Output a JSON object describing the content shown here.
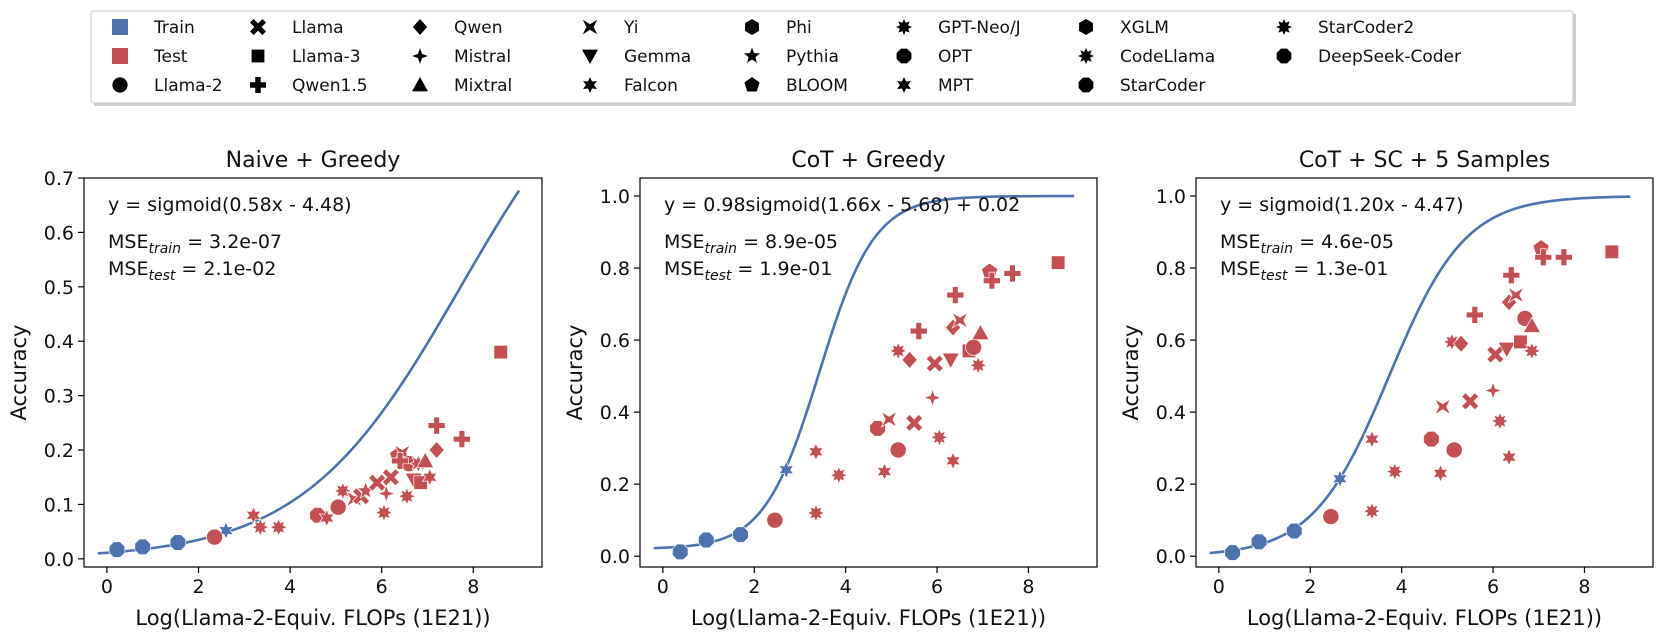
{
  "legend": {
    "position": "top",
    "entries": [
      {
        "label": "Train",
        "marker": "legend-square",
        "color": "#4c72b0"
      },
      {
        "label": "Test",
        "marker": "legend-square",
        "color": "#c44e52"
      },
      {
        "label": "Llama-2",
        "marker": "circle"
      },
      {
        "label": "Llama",
        "marker": "x"
      },
      {
        "label": "Llama-3",
        "marker": "square"
      },
      {
        "label": "Qwen1.5",
        "marker": "plus"
      },
      {
        "label": "Qwen",
        "marker": "diamond"
      },
      {
        "label": "Mistral",
        "marker": "star4"
      },
      {
        "label": "Mixtral",
        "marker": "triangle-up"
      },
      {
        "label": "Yi",
        "marker": "bowtie"
      },
      {
        "label": "Gemma",
        "marker": "triangle-down"
      },
      {
        "label": "Falcon",
        "marker": "star6"
      },
      {
        "label": "Phi",
        "marker": "hexagon"
      },
      {
        "label": "Pythia",
        "marker": "star5"
      },
      {
        "label": "BLOOM",
        "marker": "pentagon"
      },
      {
        "label": "GPT-Neo/J",
        "marker": "star8"
      },
      {
        "label": "OPT",
        "marker": "octagon"
      },
      {
        "label": "MPT",
        "marker": "star6"
      },
      {
        "label": "XGLM",
        "marker": "hexagon"
      },
      {
        "label": "CodeLlama",
        "marker": "star8"
      },
      {
        "label": "StarCoder",
        "marker": "octagon"
      },
      {
        "label": "StarCoder2",
        "marker": "star8"
      },
      {
        "label": "DeepSeek-Coder",
        "marker": "octagon"
      }
    ]
  },
  "chart_data": [
    {
      "type": "scatter",
      "title": "Naive + Greedy",
      "xlabel": "Log(Llama-2-Equiv. FLOPs (1E21))",
      "ylabel": "Accuracy",
      "xlim": [
        -0.5,
        9.5
      ],
      "ylim": [
        -0.015,
        0.7
      ],
      "xticks": [
        0,
        2,
        4,
        6,
        8
      ],
      "yticks": [
        0.0,
        0.1,
        0.2,
        0.3,
        0.4,
        0.5,
        0.6,
        0.7
      ],
      "ytick_labels": [
        "0.0",
        "0.1",
        "0.2",
        "0.3",
        "0.4",
        "0.5",
        "0.6",
        "0.7"
      ],
      "grid": false,
      "fit": {
        "formula": "y = sigmoid(0.58x - 4.48)",
        "a": 1.0,
        "k": 0.58,
        "x0": 4.48,
        "c": 0.0,
        "x_range": [
          -0.2,
          9.0
        ],
        "color": "#4c72b0"
      },
      "mse_train": {
        "prefix": "MSE",
        "sub": "train",
        "value": " = 3.2e-07"
      },
      "mse_test": {
        "prefix": "MSE",
        "sub": "test",
        "value": " = 2.1e-02"
      },
      "series": [
        {
          "name": "Train",
          "color": "#4c72b0",
          "points": [
            {
              "x": 0.22,
              "y": 0.017,
              "marker": "octagon"
            },
            {
              "x": 0.78,
              "y": 0.022,
              "marker": "octagon"
            },
            {
              "x": 1.55,
              "y": 0.03,
              "marker": "octagon"
            },
            {
              "x": 2.6,
              "y": 0.052,
              "marker": "star6"
            }
          ]
        },
        {
          "name": "Test",
          "color": "#c44e52",
          "points": [
            {
              "x": 2.35,
              "y": 0.04,
              "marker": "circle"
            },
            {
              "x": 3.2,
              "y": 0.08,
              "marker": "star6"
            },
            {
              "x": 3.35,
              "y": 0.058,
              "marker": "star8"
            },
            {
              "x": 3.75,
              "y": 0.058,
              "marker": "star8"
            },
            {
              "x": 4.6,
              "y": 0.08,
              "marker": "octagon"
            },
            {
              "x": 4.8,
              "y": 0.075,
              "marker": "star6"
            },
            {
              "x": 5.05,
              "y": 0.095,
              "marker": "circle"
            },
            {
              "x": 5.15,
              "y": 0.125,
              "marker": "star8"
            },
            {
              "x": 5.4,
              "y": 0.11,
              "marker": "bowtie"
            },
            {
              "x": 5.55,
              "y": 0.115,
              "marker": "x"
            },
            {
              "x": 5.65,
              "y": 0.125,
              "marker": "star5"
            },
            {
              "x": 5.9,
              "y": 0.14,
              "marker": "x"
            },
            {
              "x": 6.05,
              "y": 0.085,
              "marker": "star8"
            },
            {
              "x": 6.1,
              "y": 0.12,
              "marker": "star4"
            },
            {
              "x": 6.2,
              "y": 0.15,
              "marker": "x"
            },
            {
              "x": 6.35,
              "y": 0.19,
              "marker": "pentagon"
            },
            {
              "x": 6.45,
              "y": 0.195,
              "marker": "bowtie"
            },
            {
              "x": 6.55,
              "y": 0.115,
              "marker": "star8"
            },
            {
              "x": 6.6,
              "y": 0.175,
              "marker": "circle"
            },
            {
              "x": 6.7,
              "y": 0.145,
              "marker": "triangle-down"
            },
            {
              "x": 6.8,
              "y": 0.175,
              "marker": "star8"
            },
            {
              "x": 6.85,
              "y": 0.14,
              "marker": "square"
            },
            {
              "x": 6.95,
              "y": 0.18,
              "marker": "triangle-up"
            },
            {
              "x": 7.05,
              "y": 0.15,
              "marker": "star6"
            },
            {
              "x": 7.2,
              "y": 0.2,
              "marker": "diamond"
            },
            {
              "x": 6.4,
              "y": 0.18,
              "marker": "plus"
            },
            {
              "x": 7.2,
              "y": 0.245,
              "marker": "plus"
            },
            {
              "x": 7.75,
              "y": 0.22,
              "marker": "plus"
            },
            {
              "x": 8.6,
              "y": 0.38,
              "marker": "square"
            }
          ]
        }
      ]
    },
    {
      "type": "scatter",
      "title": "CoT + Greedy",
      "xlabel": "Log(Llama-2-Equiv. FLOPs (1E21))",
      "ylabel": "Accuracy",
      "xlim": [
        -0.5,
        9.5
      ],
      "ylim": [
        -0.03,
        1.05
      ],
      "xticks": [
        0,
        2,
        4,
        6,
        8
      ],
      "yticks": [
        0.0,
        0.2,
        0.4,
        0.6,
        0.8,
        1.0
      ],
      "ytick_labels": [
        "0.0",
        "0.2",
        "0.4",
        "0.6",
        "0.8",
        "1.0"
      ],
      "grid": false,
      "fit": {
        "formula": "y = 0.98sigmoid(1.66x - 5.68) + 0.02",
        "a": 0.98,
        "k": 1.66,
        "x0": 5.68,
        "c": 0.02,
        "x_range": [
          -0.2,
          9.0
        ],
        "color": "#4c72b0"
      },
      "mse_train": {
        "prefix": "MSE",
        "sub": "train",
        "value": " = 8.9e-05"
      },
      "mse_test": {
        "prefix": "MSE",
        "sub": "test",
        "value": " = 1.9e-01"
      },
      "series": [
        {
          "name": "Train",
          "color": "#4c72b0",
          "points": [
            {
              "x": 0.38,
              "y": 0.012,
              "marker": "octagon"
            },
            {
              "x": 0.95,
              "y": 0.045,
              "marker": "octagon"
            },
            {
              "x": 1.7,
              "y": 0.06,
              "marker": "octagon"
            },
            {
              "x": 2.7,
              "y": 0.24,
              "marker": "star6"
            }
          ]
        },
        {
          "name": "Test",
          "color": "#c44e52",
          "points": [
            {
              "x": 2.45,
              "y": 0.1,
              "marker": "circle"
            },
            {
              "x": 3.35,
              "y": 0.12,
              "marker": "star8"
            },
            {
              "x": 3.35,
              "y": 0.29,
              "marker": "star6"
            },
            {
              "x": 3.85,
              "y": 0.225,
              "marker": "star8"
            },
            {
              "x": 4.7,
              "y": 0.355,
              "marker": "octagon"
            },
            {
              "x": 4.85,
              "y": 0.235,
              "marker": "star6"
            },
            {
              "x": 4.95,
              "y": 0.38,
              "marker": "bowtie"
            },
            {
              "x": 5.15,
              "y": 0.57,
              "marker": "star8"
            },
            {
              "x": 5.15,
              "y": 0.295,
              "marker": "circle"
            },
            {
              "x": 5.4,
              "y": 0.545,
              "marker": "diamond"
            },
            {
              "x": 5.5,
              "y": 0.37,
              "marker": "x"
            },
            {
              "x": 5.6,
              "y": 0.625,
              "marker": "plus"
            },
            {
              "x": 5.9,
              "y": 0.44,
              "marker": "star4"
            },
            {
              "x": 5.95,
              "y": 0.535,
              "marker": "x"
            },
            {
              "x": 6.05,
              "y": 0.33,
              "marker": "star8"
            },
            {
              "x": 6.3,
              "y": 0.545,
              "marker": "triangle-down"
            },
            {
              "x": 6.35,
              "y": 0.265,
              "marker": "star6"
            },
            {
              "x": 6.35,
              "y": 0.635,
              "marker": "diamond"
            },
            {
              "x": 6.4,
              "y": 0.725,
              "marker": "plus"
            },
            {
              "x": 6.5,
              "y": 0.655,
              "marker": "bowtie"
            },
            {
              "x": 6.7,
              "y": 0.57,
              "marker": "square"
            },
            {
              "x": 6.8,
              "y": 0.58,
              "marker": "circle"
            },
            {
              "x": 6.9,
              "y": 0.53,
              "marker": "star8"
            },
            {
              "x": 6.95,
              "y": 0.62,
              "marker": "triangle-up"
            },
            {
              "x": 7.15,
              "y": 0.79,
              "marker": "pentagon"
            },
            {
              "x": 7.2,
              "y": 0.765,
              "marker": "plus"
            },
            {
              "x": 7.65,
              "y": 0.785,
              "marker": "plus"
            },
            {
              "x": 8.65,
              "y": 0.815,
              "marker": "square"
            }
          ]
        }
      ]
    },
    {
      "type": "scatter",
      "title": "CoT + SC + 5 Samples",
      "xlabel": "Log(Llama-2-Equiv. FLOPs (1E21))",
      "ylabel": "Accuracy",
      "xlim": [
        -0.5,
        9.5
      ],
      "ylim": [
        -0.03,
        1.05
      ],
      "xticks": [
        0,
        2,
        4,
        6,
        8
      ],
      "yticks": [
        0.0,
        0.2,
        0.4,
        0.6,
        0.8,
        1.0
      ],
      "ytick_labels": [
        "0.0",
        "0.2",
        "0.4",
        "0.6",
        "0.8",
        "1.0"
      ],
      "grid": false,
      "fit": {
        "formula": "y = sigmoid(1.20x - 4.47)",
        "a": 1.0,
        "k": 1.2,
        "x0": 4.47,
        "c": 0.0,
        "x_range": [
          -0.2,
          9.0
        ],
        "color": "#4c72b0"
      },
      "mse_train": {
        "prefix": "MSE",
        "sub": "train",
        "value": " = 4.6e-05"
      },
      "mse_test": {
        "prefix": "MSE",
        "sub": "test",
        "value": " = 1.3e-01"
      },
      "series": [
        {
          "name": "Train",
          "color": "#4c72b0",
          "points": [
            {
              "x": 0.3,
              "y": 0.01,
              "marker": "octagon"
            },
            {
              "x": 0.88,
              "y": 0.04,
              "marker": "octagon"
            },
            {
              "x": 1.65,
              "y": 0.07,
              "marker": "octagon"
            },
            {
              "x": 2.65,
              "y": 0.215,
              "marker": "star6"
            }
          ]
        },
        {
          "name": "Test",
          "color": "#c44e52",
          "points": [
            {
              "x": 2.45,
              "y": 0.11,
              "marker": "circle"
            },
            {
              "x": 3.35,
              "y": 0.125,
              "marker": "star8"
            },
            {
              "x": 3.35,
              "y": 0.325,
              "marker": "star6"
            },
            {
              "x": 3.85,
              "y": 0.235,
              "marker": "star8"
            },
            {
              "x": 4.65,
              "y": 0.325,
              "marker": "octagon"
            },
            {
              "x": 4.85,
              "y": 0.23,
              "marker": "star6"
            },
            {
              "x": 4.9,
              "y": 0.415,
              "marker": "bowtie"
            },
            {
              "x": 5.1,
              "y": 0.595,
              "marker": "star8"
            },
            {
              "x": 5.15,
              "y": 0.295,
              "marker": "circle"
            },
            {
              "x": 5.3,
              "y": 0.59,
              "marker": "diamond"
            },
            {
              "x": 5.5,
              "y": 0.43,
              "marker": "x"
            },
            {
              "x": 5.6,
              "y": 0.67,
              "marker": "plus"
            },
            {
              "x": 6.0,
              "y": 0.46,
              "marker": "star4"
            },
            {
              "x": 6.05,
              "y": 0.56,
              "marker": "x"
            },
            {
              "x": 6.15,
              "y": 0.375,
              "marker": "star8"
            },
            {
              "x": 6.3,
              "y": 0.575,
              "marker": "triangle-down"
            },
            {
              "x": 6.35,
              "y": 0.275,
              "marker": "star6"
            },
            {
              "x": 6.35,
              "y": 0.705,
              "marker": "diamond"
            },
            {
              "x": 6.4,
              "y": 0.78,
              "marker": "plus"
            },
            {
              "x": 6.5,
              "y": 0.725,
              "marker": "bowtie"
            },
            {
              "x": 6.6,
              "y": 0.595,
              "marker": "square"
            },
            {
              "x": 6.7,
              "y": 0.66,
              "marker": "circle"
            },
            {
              "x": 6.85,
              "y": 0.57,
              "marker": "star8"
            },
            {
              "x": 6.85,
              "y": 0.64,
              "marker": "triangle-up"
            },
            {
              "x": 7.05,
              "y": 0.855,
              "marker": "pentagon"
            },
            {
              "x": 7.1,
              "y": 0.83,
              "marker": "plus"
            },
            {
              "x": 7.55,
              "y": 0.83,
              "marker": "plus"
            },
            {
              "x": 8.6,
              "y": 0.845,
              "marker": "square"
            }
          ]
        }
      ]
    }
  ]
}
